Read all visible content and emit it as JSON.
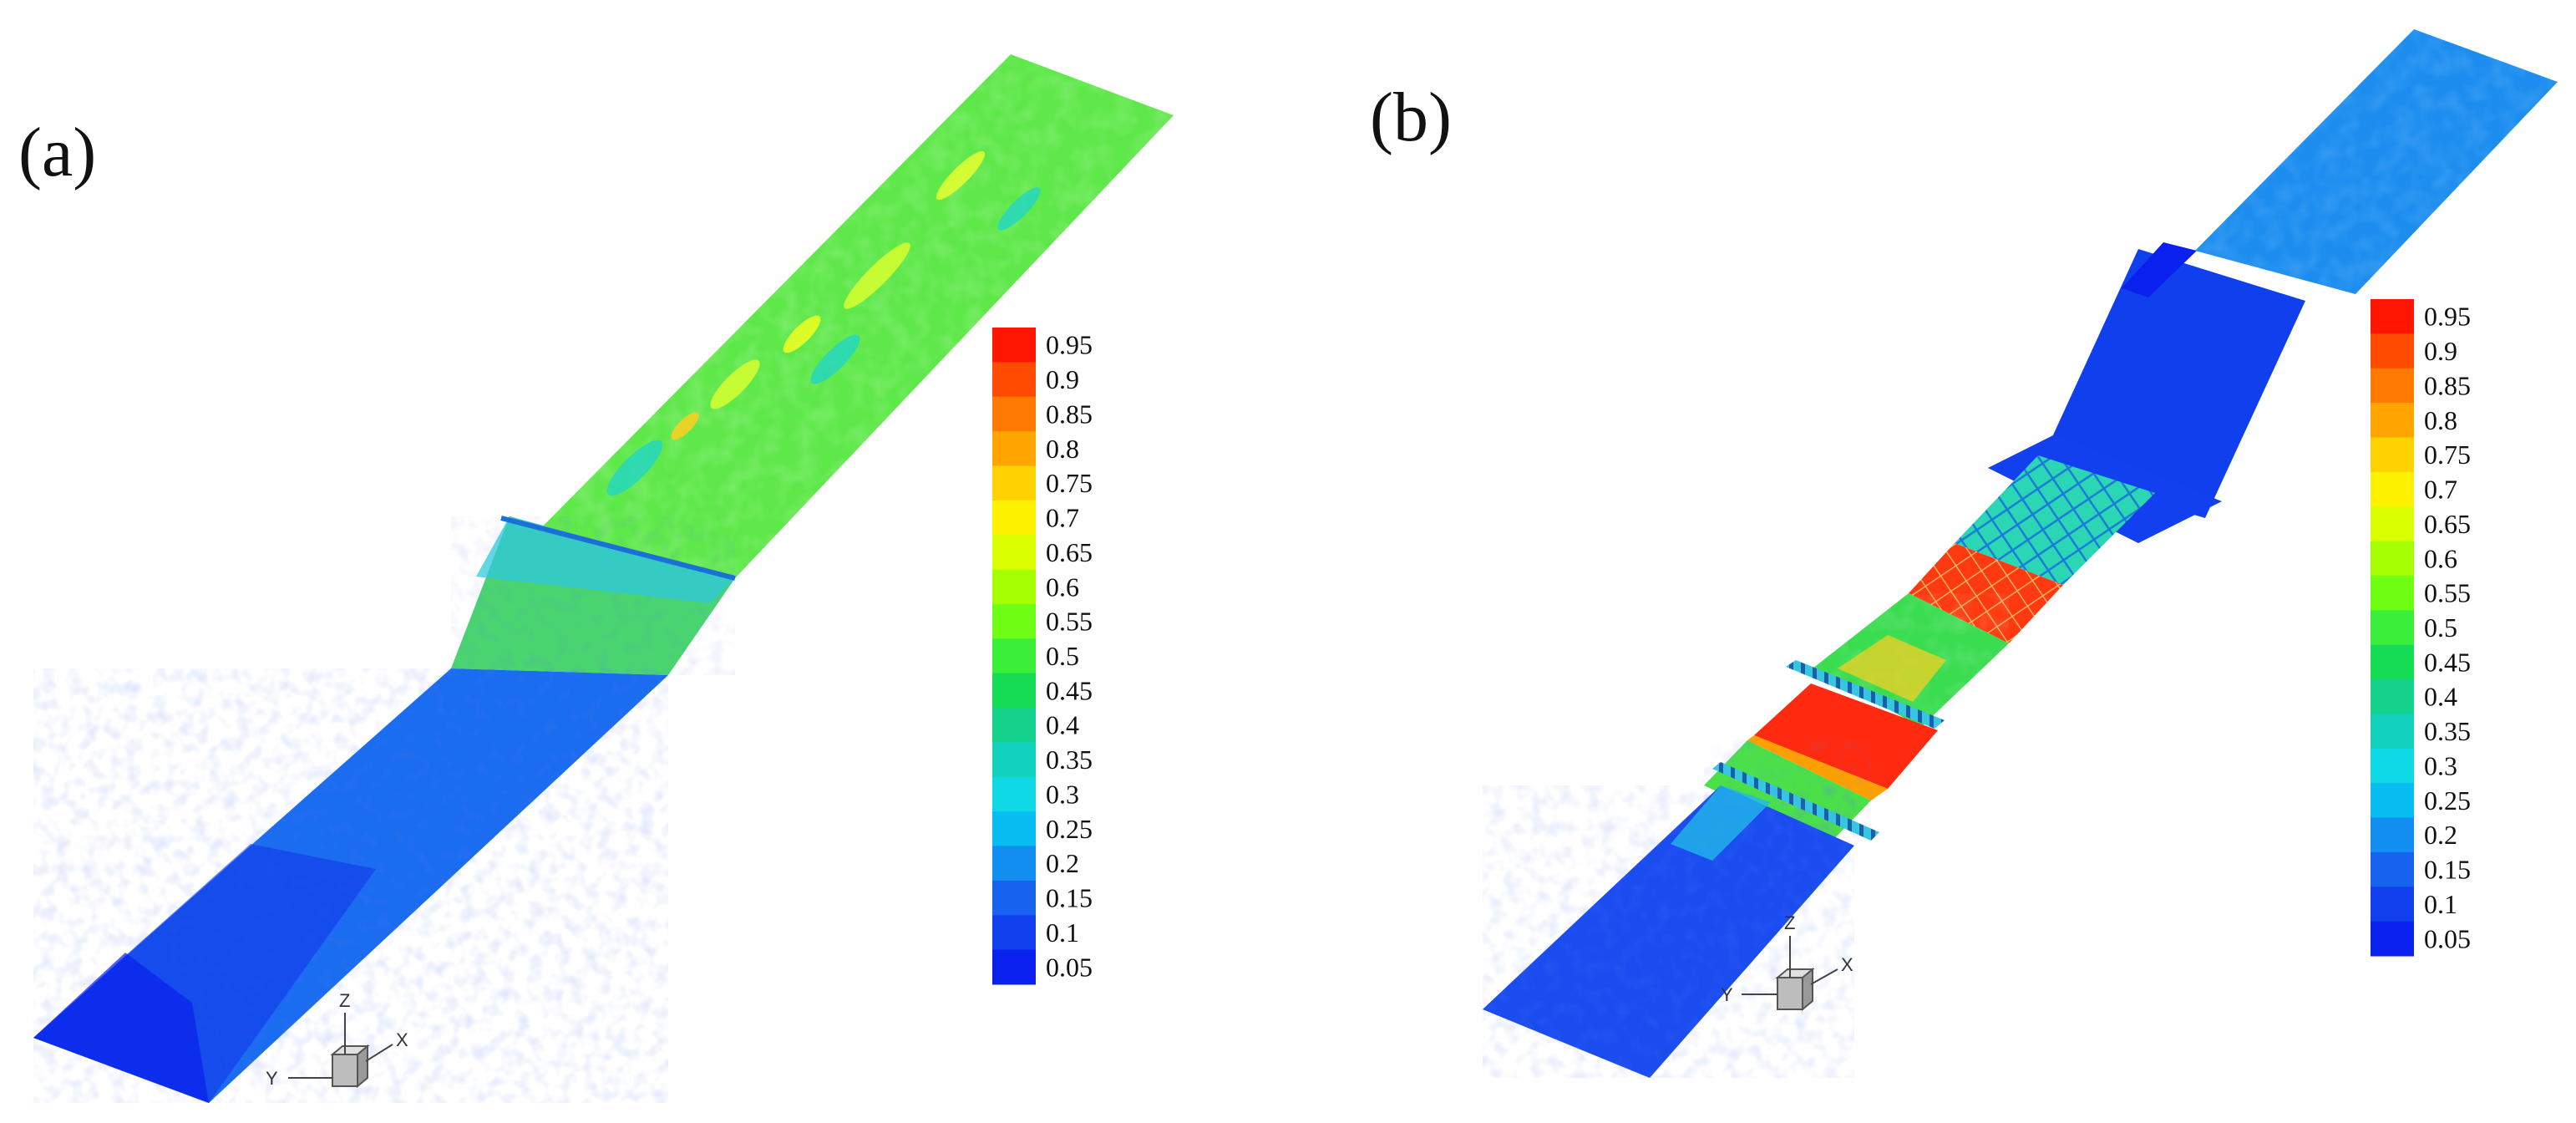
{
  "panels": [
    {
      "label": "(a)"
    },
    {
      "label": "(b)"
    }
  ],
  "colorbar": {
    "levels": [
      "0.95",
      "0.9",
      "0.85",
      "0.8",
      "0.75",
      "0.7",
      "0.65",
      "0.6",
      "0.55",
      "0.5",
      "0.45",
      "0.4",
      "0.35",
      "0.3",
      "0.25",
      "0.2",
      "0.15",
      "0.1",
      "0.05"
    ],
    "colors": [
      "#ff1500",
      "#ff4b00",
      "#ff7a00",
      "#ffa500",
      "#ffd200",
      "#fff200",
      "#d9ff00",
      "#a5ff00",
      "#6eff14",
      "#3aee3a",
      "#16dc55",
      "#14d18c",
      "#12d2be",
      "#10d9e6",
      "#08bdf2",
      "#128df0",
      "#1763f0",
      "#1340ee",
      "#0a20ee"
    ]
  },
  "axes_triad": {
    "z": "Z",
    "y": "Y",
    "x": "X"
  }
}
